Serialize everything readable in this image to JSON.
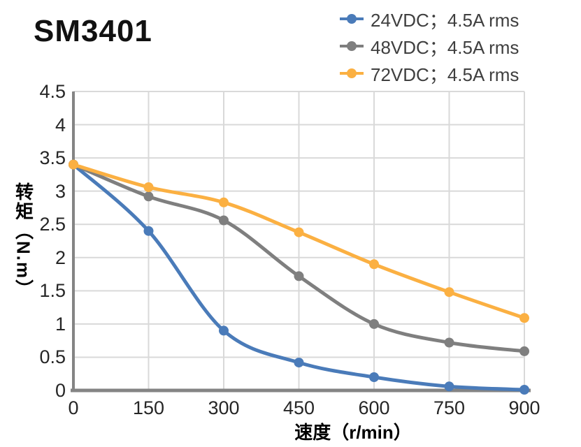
{
  "title": "SM3401",
  "chart_data": {
    "type": "line",
    "title": "SM3401",
    "xlabel": "速度（r/min）",
    "ylabel": "转矩（N.m）",
    "x": [
      0,
      150,
      300,
      450,
      600,
      750,
      900
    ],
    "series": [
      {
        "name": "24VDC；4.5A rms",
        "color": "#4A7BB9",
        "values": [
          3.4,
          2.4,
          0.9,
          0.42,
          0.2,
          0.06,
          0.01
        ]
      },
      {
        "name": "48VDC；4.5A rms",
        "color": "#7F7F7F",
        "values": [
          3.4,
          2.92,
          2.56,
          1.72,
          1.0,
          0.72,
          0.59
        ]
      },
      {
        "name": "72VDC；4.5A rms",
        "color": "#FBB042",
        "values": [
          3.4,
          3.06,
          2.83,
          2.38,
          1.9,
          1.48,
          1.09
        ]
      }
    ],
    "xlim": [
      0,
      900
    ],
    "ylim": [
      0,
      4.5
    ],
    "xticks": [
      0,
      150,
      300,
      450,
      600,
      750,
      900
    ],
    "yticks": [
      0,
      0.5,
      1,
      1.5,
      2,
      2.5,
      3,
      3.5,
      4,
      4.5
    ],
    "grid": true,
    "smooth": true,
    "marker": "circle",
    "legend_position": "top-right",
    "colors": {
      "grid": "#D9D9D9",
      "axis": "#848484",
      "tick_text": "#262626",
      "legend_text": "#3F3F3F",
      "title_text": "#111111"
    }
  }
}
